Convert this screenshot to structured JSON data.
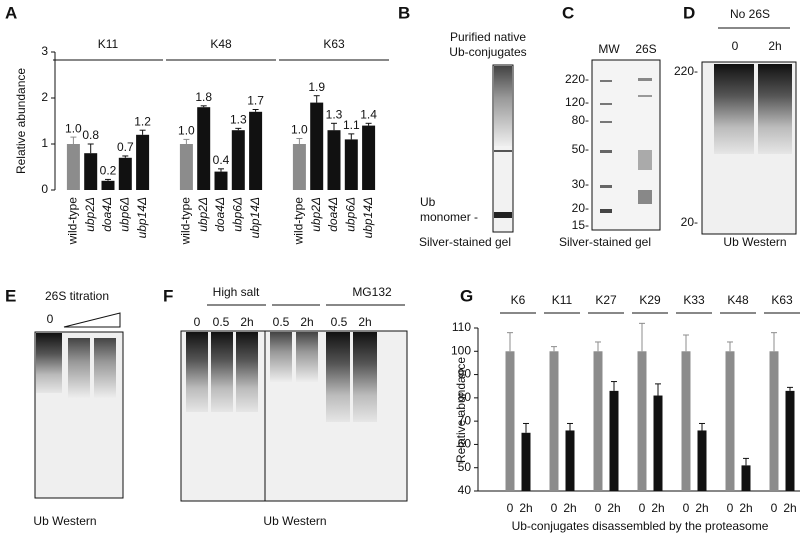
{
  "chart_data": [
    {
      "type": "bar",
      "label": "A",
      "ylabel": "Relative abundance",
      "ylim": [
        0,
        3
      ],
      "yticks": [
        0,
        1,
        2,
        3
      ],
      "colors": [
        "#8c8c8c",
        "#111111",
        "#111111",
        "#111111",
        "#111111"
      ],
      "groups": [
        {
          "name": "K11",
          "categories": [
            "wild-type",
            "ubp2Δ",
            "doa4Δ",
            "ubp6Δ",
            "ubp14Δ"
          ],
          "values": [
            1.0,
            0.8,
            0.2,
            0.7,
            1.2
          ],
          "errors": [
            0.15,
            0.2,
            0.03,
            0.04,
            0.1
          ],
          "value_labels": [
            "1.0",
            "0.8",
            "0.2",
            "0.7",
            "1.2"
          ]
        },
        {
          "name": "K48",
          "categories": [
            "wild-type",
            "ubp2Δ",
            "doa4Δ",
            "ubp6Δ",
            "ubp14Δ"
          ],
          "values": [
            1.0,
            1.8,
            0.4,
            1.3,
            1.7
          ],
          "errors": [
            0.1,
            0.03,
            0.06,
            0.04,
            0.05
          ],
          "value_labels": [
            "1.0",
            "1.8",
            "0.4",
            "1.3",
            "1.7"
          ]
        },
        {
          "name": "K63",
          "categories": [
            "wild-type",
            "ubp2Δ",
            "doa4Δ",
            "ubp6Δ",
            "ubp14Δ"
          ],
          "values": [
            1.0,
            1.9,
            1.3,
            1.1,
            1.4
          ],
          "errors": [
            0.12,
            0.15,
            0.15,
            0.12,
            0.05
          ],
          "value_labels": [
            "1.0",
            "1.9",
            "1.3",
            "1.1",
            "1.4"
          ]
        }
      ]
    },
    {
      "type": "bar",
      "label": "G",
      "ylabel": "Relative abundance",
      "xlabel": "Ub-conjugates disassembled by the proteasome",
      "ylim": [
        40,
        110
      ],
      "yticks": [
        40,
        50,
        60,
        70,
        80,
        90,
        100,
        110
      ],
      "colors": [
        "#8c8c8c",
        "#111111"
      ],
      "groups": [
        {
          "name": "K6",
          "categories": [
            "0",
            "2h"
          ],
          "values": [
            100,
            65
          ],
          "errors": [
            8,
            4
          ]
        },
        {
          "name": "K11",
          "categories": [
            "0",
            "2h"
          ],
          "values": [
            100,
            66
          ],
          "errors": [
            2,
            3
          ]
        },
        {
          "name": "K27",
          "categories": [
            "0",
            "2h"
          ],
          "values": [
            100,
            83
          ],
          "errors": [
            4,
            4
          ]
        },
        {
          "name": "K29",
          "categories": [
            "0",
            "2h"
          ],
          "values": [
            100,
            81
          ],
          "errors": [
            12,
            5
          ]
        },
        {
          "name": "K33",
          "categories": [
            "0",
            "2h"
          ],
          "values": [
            100,
            66
          ],
          "errors": [
            7,
            3
          ]
        },
        {
          "name": "K48",
          "categories": [
            "0",
            "2h"
          ],
          "values": [
            100,
            51
          ],
          "errors": [
            4,
            3
          ]
        },
        {
          "name": "K63",
          "categories": [
            "0",
            "2h"
          ],
          "values": [
            100,
            83
          ],
          "errors": [
            8,
            1.5
          ]
        }
      ]
    }
  ],
  "panels": {
    "B": {
      "label": "B",
      "title_lines": [
        "Purified native",
        "Ub-conjugates"
      ],
      "marker_lines": [
        "Ub",
        "monomer -"
      ],
      "caption": "Silver-stained gel"
    },
    "C": {
      "label": "C",
      "lanes": [
        "MW",
        "26S"
      ],
      "markers": [
        "220-",
        "120-",
        "80-",
        "50-",
        "30-",
        "20-",
        "15-"
      ],
      "caption": "Silver-stained gel"
    },
    "D": {
      "label": "D",
      "header": "No 26S",
      "lanes": [
        "0",
        "2h"
      ],
      "markers": [
        "220-",
        "20-"
      ],
      "caption": "Ub Western"
    },
    "E": {
      "label": "E",
      "header": "26S titration",
      "lanes": [
        "0"
      ],
      "caption": "Ub Western"
    },
    "F": {
      "label": "F",
      "groups": [
        "High salt",
        "MG132"
      ],
      "lanes": [
        "0",
        "0.5",
        "2h",
        "0.5",
        "2h",
        "0.5",
        "2h"
      ],
      "caption": "Ub Western"
    }
  }
}
